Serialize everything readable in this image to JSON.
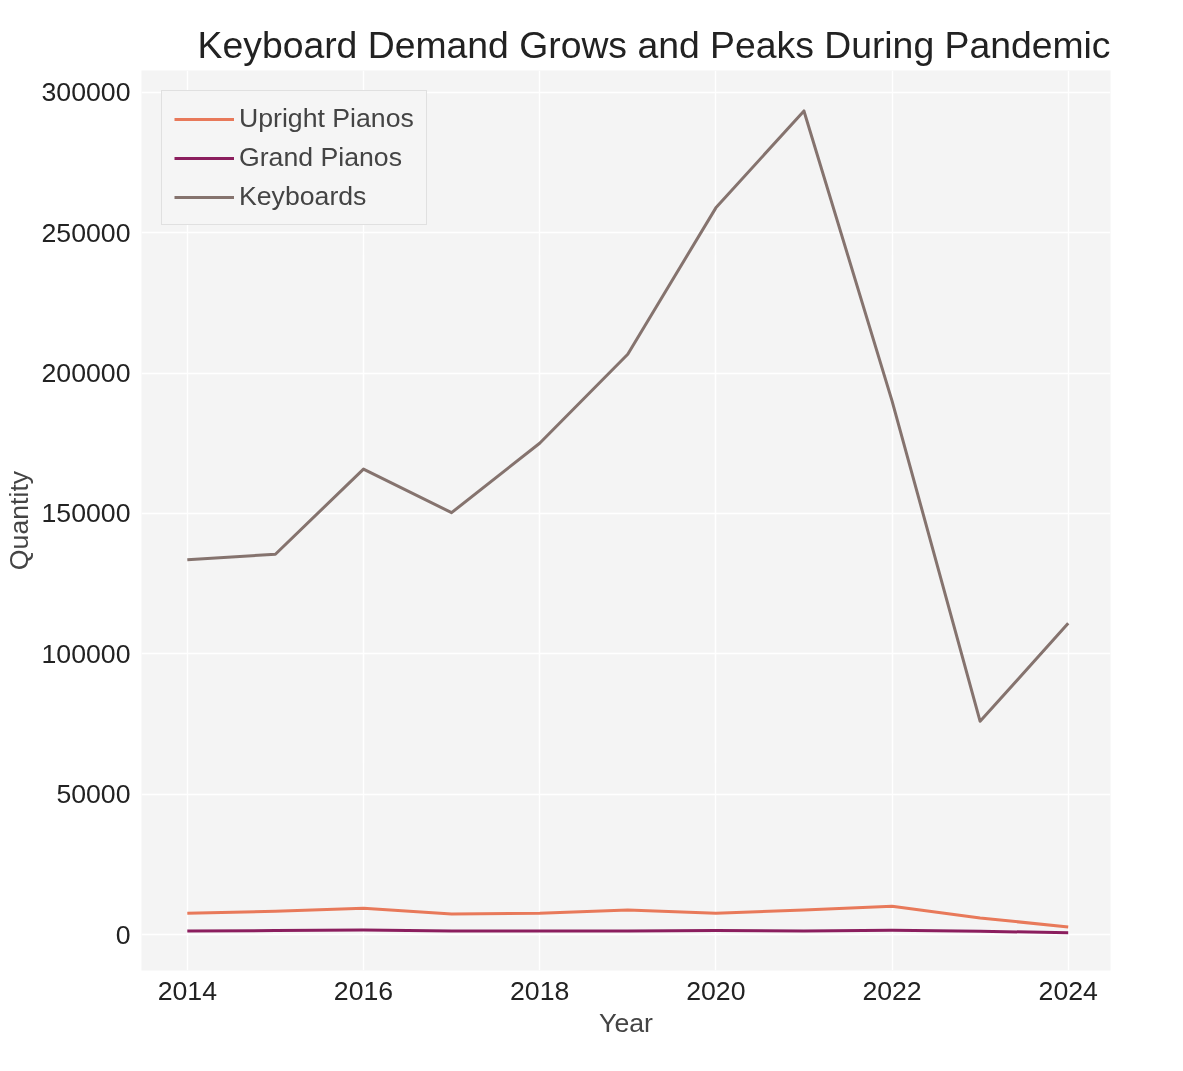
{
  "chart_data": {
    "type": "line",
    "title": "Keyboard Demand Grows and Peaks During Pandemic",
    "xlabel": "Year",
    "ylabel": "Quantity",
    "x": [
      2014,
      2015,
      2016,
      2017,
      2018,
      2019,
      2020,
      2021,
      2022,
      2023,
      2024
    ],
    "series": [
      {
        "name": "Upright Pianos",
        "color": "#e8795a",
        "values": [
          7700,
          8400,
          9500,
          7400,
          7700,
          8800,
          7700,
          8800,
          10200,
          6000,
          2800
        ]
      },
      {
        "name": "Grand Pianos",
        "color": "#8b1e5e",
        "values": [
          1400,
          1500,
          1700,
          1400,
          1400,
          1400,
          1500,
          1400,
          1600,
          1300,
          700
        ]
      },
      {
        "name": "Keyboards",
        "color": "#85736e",
        "values": [
          133500,
          135500,
          165800,
          150300,
          175000,
          206700,
          258800,
          293300,
          190100,
          76000,
          110900
        ]
      }
    ],
    "xlim": [
      2013.48,
      2024.48
    ],
    "ylim": [
      -12700,
      307700
    ],
    "xticks": [
      2014,
      2016,
      2018,
      2020,
      2022,
      2024
    ],
    "yticks": [
      0,
      50000,
      100000,
      150000,
      200000,
      250000,
      300000
    ],
    "grid": true,
    "legend": "top left",
    "marker": "none",
    "line_style": "solid"
  }
}
